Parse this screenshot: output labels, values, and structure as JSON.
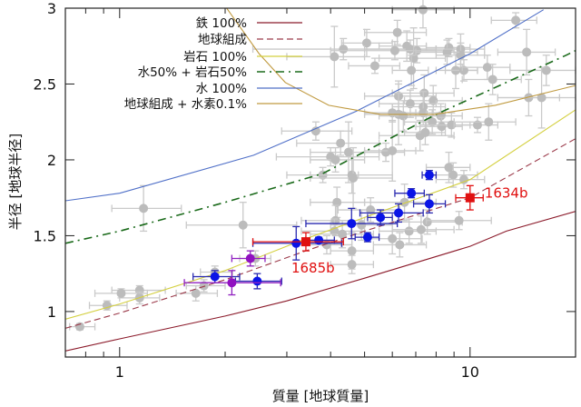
{
  "chart_data": {
    "type": "scatter",
    "title": "",
    "xlabel": "質量 [地球質量]",
    "ylabel": "半径 [地球半径]",
    "xscale": "log",
    "xlim": [
      0.7,
      20
    ],
    "ylim": [
      0.7,
      3
    ],
    "xticks": [
      {
        "v": 1,
        "label": "1"
      },
      {
        "v": 10,
        "label": "10"
      }
    ],
    "yticks": [
      {
        "v": 1,
        "label": "1"
      },
      {
        "v": 1.5,
        "label": "1.5"
      },
      {
        "v": 2,
        "label": "2"
      },
      {
        "v": 2.5,
        "label": "2.5"
      },
      {
        "v": 3,
        "label": "3"
      }
    ],
    "grid": false,
    "legend_position": "top-left",
    "curves": [
      {
        "name": "鉄 100%",
        "color": "#8b1a2a",
        "dash": "solid",
        "points": [
          [
            0.7,
            0.74
          ],
          [
            1,
            0.82
          ],
          [
            2,
            0.97
          ],
          [
            3,
            1.07
          ],
          [
            5,
            1.22
          ],
          [
            10,
            1.43
          ],
          [
            12.7,
            1.53
          ],
          [
            20,
            1.66
          ]
        ]
      },
      {
        "name": "地球組成",
        "color": "#9b3a4a",
        "dash": "dashed",
        "points": [
          [
            0.7,
            0.89
          ],
          [
            1,
            0.99
          ],
          [
            2,
            1.21
          ],
          [
            3.4,
            1.4
          ],
          [
            5,
            1.53
          ],
          [
            10,
            1.75
          ],
          [
            20,
            2.14
          ]
        ]
      },
      {
        "name": "岩石 100%",
        "color": "#d4d040",
        "dash": "solid",
        "points": [
          [
            0.7,
            0.95
          ],
          [
            1,
            1.05
          ],
          [
            2,
            1.27
          ],
          [
            3.4,
            1.48
          ],
          [
            5,
            1.62
          ],
          [
            10,
            1.87
          ],
          [
            20,
            2.33
          ]
        ]
      },
      {
        "name": "水50% + 岩石50%",
        "color": "#1a6a1a",
        "dash": "dashdot",
        "points": [
          [
            0.7,
            1.45
          ],
          [
            1,
            1.53
          ],
          [
            2,
            1.72
          ],
          [
            3.8,
            1.91
          ],
          [
            8,
            2.3
          ],
          [
            18.8,
            2.69
          ],
          [
            20,
            2.72
          ]
        ]
      },
      {
        "name": "水 100%",
        "color": "#5070c8",
        "dash": "solid",
        "points": [
          [
            0.7,
            1.73
          ],
          [
            1,
            1.78
          ],
          [
            2.41,
            2.03
          ],
          [
            4.73,
            2.32
          ],
          [
            10,
            2.7
          ],
          [
            16.2,
            2.99
          ]
        ]
      },
      {
        "name": "地球組成 + 水素0.1%",
        "color": "#c09a40",
        "dash": "solid",
        "points": [
          [
            2.02,
            3.0
          ],
          [
            2.5,
            2.7
          ],
          [
            2.97,
            2.51
          ],
          [
            3.95,
            2.36
          ],
          [
            5.55,
            2.3
          ],
          [
            7.9,
            2.3
          ],
          [
            11.8,
            2.36
          ],
          [
            20,
            2.49
          ]
        ]
      }
    ],
    "gray_points": {
      "color": "#bcbcbc",
      "fields": [
        "mass",
        "radius",
        "mass_low",
        "mass_high",
        "radius_err"
      ],
      "values": [
        [
          7.34,
          2.99,
          6.0,
          9.0,
          0.12
        ],
        [
          13.5,
          2.92,
          11.5,
          15.5,
          0.05
        ],
        [
          6.2,
          2.84,
          5.0,
          7.5,
          0.08
        ],
        [
          5.07,
          2.77,
          4.3,
          6.0,
          0.09
        ],
        [
          4.35,
          2.73,
          2.4,
          8.0,
          0.07
        ],
        [
          4.1,
          2.68,
          3.0,
          5.0,
          0.2
        ],
        [
          6.6,
          2.75,
          5.5,
          7.5,
          0.1
        ],
        [
          6.75,
          2.73,
          5.0,
          8.0,
          0.06
        ],
        [
          7.05,
          2.72,
          6.0,
          8.0,
          0.08
        ],
        [
          6.1,
          2.72,
          4.0,
          9.0,
          0.06
        ],
        [
          6.9,
          2.67,
          5.5,
          8.5,
          0.2
        ],
        [
          8.7,
          2.74,
          7.5,
          10.0,
          0.06
        ],
        [
          8.6,
          2.71,
          7.0,
          10.5,
          0.08
        ],
        [
          9.4,
          2.73,
          8.0,
          11.0,
          0.1
        ],
        [
          9.4,
          2.69,
          8.0,
          11.0,
          0.08
        ],
        [
          14.5,
          2.71,
          12.0,
          17.5,
          0.15
        ],
        [
          5.35,
          2.62,
          4.5,
          6.3,
          0.05
        ],
        [
          6.8,
          2.59,
          6.0,
          7.6,
          0.1
        ],
        [
          9.1,
          2.59,
          8.0,
          10.5,
          0.12
        ],
        [
          9.6,
          2.59,
          8.5,
          10.5,
          0.07
        ],
        [
          11.2,
          2.61,
          9.5,
          13.0,
          0.08
        ],
        [
          11.6,
          2.53,
          9.5,
          14.0,
          0.1
        ],
        [
          16.5,
          2.59,
          13.0,
          20.0,
          0.1
        ],
        [
          14.7,
          2.41,
          12.0,
          18.0,
          0.12
        ],
        [
          16.0,
          2.41,
          12.0,
          20.0,
          0.2
        ],
        [
          6.25,
          2.42,
          5.0,
          8.0,
          0.1
        ],
        [
          7.4,
          2.44,
          6.0,
          9.0,
          0.12
        ],
        [
          7.85,
          2.39,
          6.5,
          9.5,
          0.1
        ],
        [
          6.75,
          2.37,
          5.5,
          8.0,
          0.09
        ],
        [
          7.35,
          2.35,
          6.0,
          8.5,
          0.1
        ],
        [
          7.35,
          2.31,
          6.0,
          8.5,
          0.08
        ],
        [
          6.0,
          2.31,
          5.0,
          7.0,
          0.06
        ],
        [
          6.25,
          2.3,
          5.0,
          7.5,
          0.2
        ],
        [
          6.45,
          2.29,
          5.5,
          7.5,
          0.1
        ],
        [
          8.25,
          2.29,
          7.0,
          9.5,
          0.08
        ],
        [
          7.8,
          2.25,
          6.5,
          9.0,
          0.08
        ],
        [
          8.3,
          2.22,
          7.0,
          9.5,
          0.06
        ],
        [
          8.85,
          2.23,
          7.5,
          10.0,
          0.08
        ],
        [
          10.5,
          2.23,
          9.0,
          12.0,
          0.05
        ],
        [
          11.3,
          2.25,
          9.0,
          13.5,
          0.12
        ],
        [
          3.63,
          2.19,
          2.9,
          4.6,
          0.06
        ],
        [
          7.2,
          2.16,
          5.5,
          9.0,
          0.1
        ],
        [
          7.45,
          2.18,
          6.5,
          8.5,
          0.08
        ],
        [
          4.27,
          2.11,
          3.2,
          5.5,
          0.08
        ],
        [
          4.5,
          2.05,
          3.5,
          5.5,
          0.2
        ],
        [
          4.0,
          2.02,
          2.8,
          5.5,
          0.06
        ],
        [
          4.13,
          2.0,
          3.5,
          5.0,
          0.08
        ],
        [
          5.75,
          2.05,
          5.0,
          6.5,
          0.06
        ],
        [
          6.0,
          2.06,
          5.0,
          7.0,
          0.2
        ],
        [
          3.8,
          1.9,
          3.0,
          4.8,
          0.05
        ],
        [
          4.6,
          1.9,
          3.5,
          6.0,
          0.12
        ],
        [
          8.7,
          1.95,
          7.5,
          10.0,
          0.1
        ],
        [
          8.95,
          1.9,
          7.5,
          10.5,
          0.08
        ],
        [
          9.6,
          1.87,
          8.0,
          11.0,
          0.06
        ],
        [
          4.64,
          1.88,
          3.5,
          6.0,
          0.2
        ],
        [
          4.17,
          1.72,
          3.5,
          5.0,
          0.1
        ],
        [
          2.25,
          1.57,
          1.55,
          3.2,
          0.15
        ],
        [
          5.2,
          1.67,
          4.2,
          6.3,
          0.08
        ],
        [
          4.13,
          1.6,
          3.3,
          5.0,
          0.1
        ],
        [
          4.9,
          1.57,
          4.0,
          6.0,
          0.1
        ],
        [
          6.5,
          1.72,
          5.0,
          8.0,
          0.12
        ],
        [
          7.55,
          1.59,
          6.0,
          9.5,
          0.08
        ],
        [
          9.3,
          1.6,
          7.5,
          11.5,
          0.06
        ],
        [
          6.7,
          1.53,
          5.5,
          8.0,
          0.08
        ],
        [
          7.25,
          1.54,
          6.0,
          9.0,
          0.09
        ],
        [
          4.1,
          1.53,
          3.3,
          5.0,
          0.08
        ],
        [
          4.32,
          1.51,
          3.5,
          5.3,
          0.09
        ],
        [
          6.0,
          1.48,
          5.0,
          7.3,
          0.1
        ],
        [
          6.3,
          1.44,
          5.3,
          7.5,
          0.08
        ],
        [
          3.9,
          1.44,
          3.2,
          4.6,
          0.06
        ],
        [
          4.6,
          1.4,
          4.0,
          5.3,
          0.12
        ],
        [
          4.6,
          1.31,
          4.0,
          5.3,
          0.06
        ],
        [
          2.44,
          1.35,
          2.2,
          2.7,
          0.05
        ],
        [
          1.87,
          1.26,
          1.7,
          2.1,
          0.04
        ],
        [
          1.74,
          1.17,
          1.55,
          2.0,
          0.04
        ],
        [
          1.65,
          1.12,
          1.45,
          1.9,
          0.05
        ],
        [
          1.17,
          1.68,
          0.95,
          1.5,
          0.15
        ],
        [
          1.14,
          1.14,
          0.95,
          1.35,
          0.03
        ],
        [
          1.14,
          1.09,
          1.0,
          1.3,
          0.04
        ],
        [
          1.01,
          1.12,
          0.85,
          1.2,
          0.03
        ],
        [
          0.92,
          1.04,
          0.82,
          1.05,
          0.03
        ],
        [
          0.77,
          0.9,
          0.72,
          0.85,
          0.02
        ]
      ]
    },
    "highlight_points": [
      {
        "color": "#0a14e6",
        "bar_color": "#2a2ab0",
        "fields": [
          "mass",
          "radius",
          "mass_low",
          "mass_high",
          "radius_err"
        ],
        "values": [
          [
            1.87,
            1.23,
            1.62,
            2.2,
            0.04
          ],
          [
            2.47,
            1.2,
            2.14,
            2.9,
            0.05
          ],
          [
            3.19,
            1.45,
            2.4,
            4.3,
            0.11
          ],
          [
            3.7,
            1.47,
            3.4,
            4.1,
            0.02
          ],
          [
            4.59,
            1.58,
            3.4,
            6.2,
            0.1
          ],
          [
            5.1,
            1.49,
            4.7,
            5.5,
            0.03
          ],
          [
            5.55,
            1.62,
            5.1,
            6.0,
            0.05
          ],
          [
            6.25,
            1.65,
            4.85,
            7.35,
            0.06
          ],
          [
            6.8,
            1.78,
            6.1,
            7.4,
            0.03
          ],
          [
            7.65,
            1.71,
            6.9,
            8.5,
            0.06
          ],
          [
            7.65,
            1.9,
            7.3,
            8.0,
            0.03
          ]
        ]
      },
      {
        "color": "#9010c0",
        "bar_color": "#9020c0",
        "fields": [
          "mass",
          "radius",
          "mass_low",
          "mass_high",
          "radius_err"
        ],
        "values": [
          [
            2.36,
            1.35,
            2.09,
            2.6,
            0.05
          ],
          [
            2.09,
            1.19,
            1.53,
            2.88,
            0.08
          ]
        ]
      }
    ],
    "labeled_points": [
      {
        "label": "1685b",
        "mass": 3.4,
        "radius": 1.46,
        "mass_low": 2.4,
        "mass_high": 4.35,
        "radius_err": 0.06,
        "color": "#e01010"
      },
      {
        "label": "1634b",
        "mass": 10.0,
        "radius": 1.75,
        "mass_low": 9.1,
        "mass_high": 10.9,
        "radius_err": 0.08,
        "color": "#e01010"
      }
    ]
  }
}
